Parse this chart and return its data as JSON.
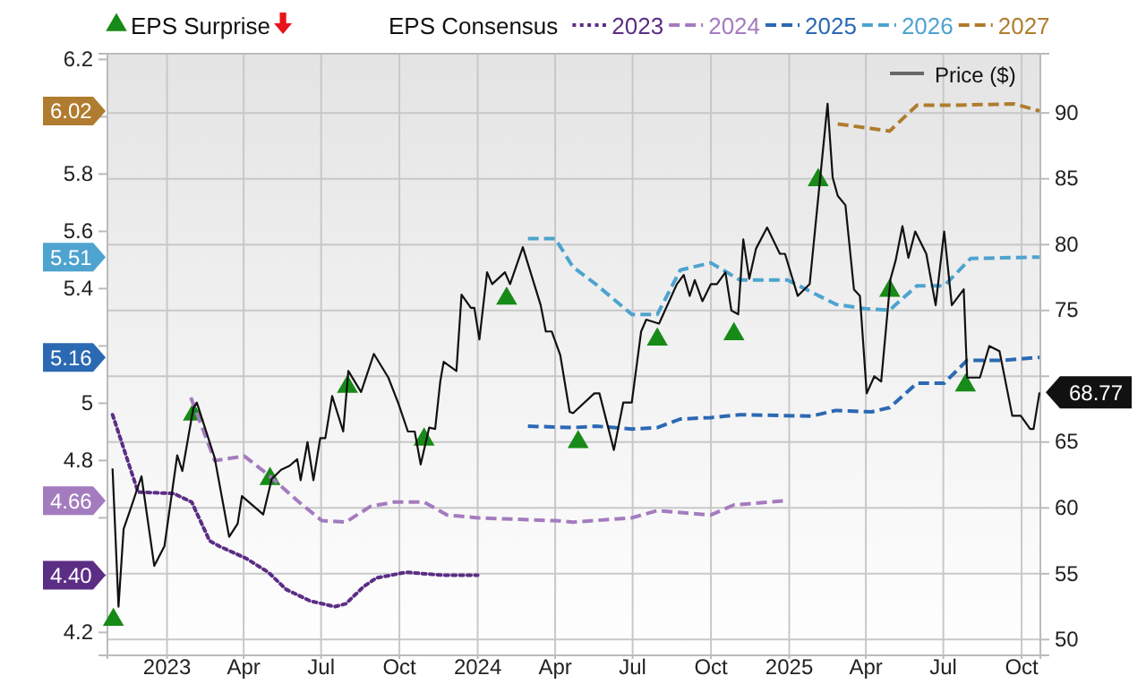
{
  "chart_data": {
    "type": "line",
    "legend_title": "EPS Consensus",
    "xlim": [
      "2022-10-23",
      "2025-10-23"
    ],
    "xticks": [
      {
        "value": "2023-01-01",
        "label": "2023"
      },
      {
        "value": "2023-04-01",
        "label": "Apr"
      },
      {
        "value": "2023-07-01",
        "label": "Jul"
      },
      {
        "value": "2023-10-01",
        "label": "Oct"
      },
      {
        "value": "2024-01-01",
        "label": "2024"
      },
      {
        "value": "2024-04-01",
        "label": "Apr"
      },
      {
        "value": "2024-07-01",
        "label": "Jul"
      },
      {
        "value": "2024-10-01",
        "label": "Oct"
      },
      {
        "value": "2025-01-01",
        "label": "2025"
      },
      {
        "value": "2025-04-01",
        "label": "Apr"
      },
      {
        "value": "2025-07-01",
        "label": "Jul"
      },
      {
        "value": "2025-10-01",
        "label": "Oct"
      }
    ],
    "ylim": [
      4.12,
      6.22
    ],
    "yticks": [
      4.2,
      {
        "value": 4.4,
        "label": null
      },
      {
        "value": 4.6,
        "label": null
      },
      4.8,
      5,
      {
        "value": 5.2,
        "label": null
      },
      5.4,
      5.6,
      5.8,
      {
        "value": 6.0,
        "label": null
      },
      6.2
    ],
    "y2lim": [
      48.8,
      94.5
    ],
    "y2ticks": [
      50,
      55,
      60,
      65,
      {
        "value": 70,
        "label": null
      },
      75,
      80,
      85,
      90
    ],
    "grid": true,
    "legend": "top",
    "annotations": [
      {
        "text": "6.02",
        "y": 6.02
      },
      {
        "text": "5.51",
        "y": 5.51
      },
      {
        "text": "5.16",
        "y": 5.16
      },
      {
        "text": "4.66",
        "y": 4.66
      },
      {
        "text": "4.40",
        "y": 4.4
      }
    ],
    "series": [
      {
        "name": "EPS Surprise",
        "type": "scatter",
        "axis": "y2",
        "marker": "triangle",
        "color": "#178a17",
        "x": [
          "2022-10-30",
          "2023-02-01",
          "2023-05-02",
          "2023-08-01",
          "2023-10-30",
          "2024-02-04",
          "2024-04-28",
          "2024-07-30",
          "2024-10-28",
          "2025-02-04",
          "2025-04-29",
          "2025-07-27"
        ],
        "values": [
          51.5,
          67.1,
          62.2,
          69.2,
          65.2,
          75.9,
          65.0,
          72.8,
          73.2,
          84.9,
          76.5,
          69.3
        ]
      },
      {
        "name": "2023",
        "color": "#5c2d85",
        "line_style": "dotted",
        "x": [
          "2022-10-29",
          "2022-11-28",
          "2023-01-09",
          "2023-01-30",
          "2023-02-20",
          "2023-03-04",
          "2023-04-03",
          "2023-04-30",
          "2023-05-21",
          "2023-06-18",
          "2023-07-17",
          "2023-07-30",
          "2023-08-20",
          "2023-09-04",
          "2023-10-09",
          "2023-11-20",
          "2024-01-01"
        ],
        "values": [
          4.96,
          4.69,
          4.685,
          4.655,
          4.52,
          4.5,
          4.46,
          4.41,
          4.35,
          4.31,
          4.29,
          4.3,
          4.36,
          4.39,
          4.41,
          4.4,
          4.4
        ]
      },
      {
        "name": "2024",
        "color": "#a47bbf",
        "line_style": "dashed",
        "x": [
          "2023-01-29",
          "2023-02-26",
          "2023-04-02",
          "2023-04-30",
          "2023-06-05",
          "2023-07-02",
          "2023-07-30",
          "2023-08-28",
          "2023-09-25",
          "2023-10-30",
          "2023-11-26",
          "2024-01-01",
          "2024-04-01",
          "2024-04-22",
          "2024-06-30",
          "2024-07-30",
          "2024-10-01",
          "2024-10-28",
          "2024-12-30"
        ],
        "values": [
          5.02,
          4.8,
          4.815,
          4.75,
          4.655,
          4.59,
          4.585,
          4.64,
          4.655,
          4.655,
          4.61,
          4.6,
          4.59,
          4.585,
          4.6,
          4.625,
          4.61,
          4.645,
          4.66
        ]
      },
      {
        "name": "2025",
        "color": "#2b69b3",
        "line_style": "dashed",
        "x": [
          "2024-02-29",
          "2024-04-22",
          "2024-05-19",
          "2024-06-30",
          "2024-07-30",
          "2024-08-26",
          "2024-10-01",
          "2024-11-04",
          "2025-01-27",
          "2025-02-25",
          "2025-04-08",
          "2025-04-29",
          "2025-05-31",
          "2025-07-02",
          "2025-07-29",
          "2025-09-09",
          "2025-10-22"
        ],
        "values": [
          4.92,
          4.915,
          4.92,
          4.91,
          4.915,
          4.945,
          4.95,
          4.96,
          4.955,
          4.975,
          4.97,
          4.985,
          5.07,
          5.07,
          5.15,
          5.15,
          5.16
        ]
      },
      {
        "name": "2026",
        "color": "#4ea3cf",
        "line_style": "dashed",
        "x": [
          "2024-02-29",
          "2024-04-01",
          "2024-04-22",
          "2024-05-19",
          "2024-06-30",
          "2024-07-30",
          "2024-08-26",
          "2024-10-01",
          "2024-11-04",
          "2024-12-30",
          "2025-02-25",
          "2025-03-31",
          "2025-04-29",
          "2025-05-31",
          "2025-07-02",
          "2025-08-02",
          "2025-10-22"
        ],
        "values": [
          5.575,
          5.575,
          5.475,
          5.415,
          5.31,
          5.31,
          5.465,
          5.49,
          5.43,
          5.43,
          5.345,
          5.33,
          5.325,
          5.41,
          5.41,
          5.505,
          5.51
        ]
      },
      {
        "name": "2027",
        "color": "#b07c2f",
        "line_style": "dashed",
        "x": [
          "2025-02-27",
          "2025-04-29",
          "2025-05-31",
          "2025-07-12",
          "2025-09-22",
          "2025-10-22"
        ],
        "values": [
          5.975,
          5.95,
          6.04,
          6.04,
          6.045,
          6.02
        ]
      },
      {
        "name": "Price ($)",
        "color": "#111111",
        "axis": "y2",
        "line_style": "solid",
        "x": [
          "2022-10-29",
          "2022-11-05",
          "2022-11-11",
          "2022-11-19",
          "2022-12-02",
          "2022-12-17",
          "2022-12-29",
          "2023-01-13",
          "2023-01-19",
          "2023-02-01",
          "2023-02-05",
          "2023-02-26",
          "2023-03-15",
          "2023-03-25",
          "2023-03-30",
          "2023-04-24",
          "2023-05-04",
          "2023-05-15",
          "2023-05-25",
          "2023-06-03",
          "2023-06-07",
          "2023-06-15",
          "2023-06-22",
          "2023-06-30",
          "2023-07-06",
          "2023-07-14",
          "2023-07-27",
          "2023-08-02",
          "2023-08-17",
          "2023-09-01",
          "2023-09-18",
          "2023-09-30",
          "2023-10-11",
          "2023-10-19",
          "2023-10-26",
          "2023-11-05",
          "2023-11-12",
          "2023-11-18",
          "2023-11-22",
          "2023-12-07",
          "2023-12-13",
          "2023-12-24",
          "2023-12-28",
          "2024-01-03",
          "2024-01-12",
          "2024-01-18",
          "2024-02-02",
          "2024-02-08",
          "2024-02-23",
          "2024-03-15",
          "2024-03-21",
          "2024-03-28",
          "2024-04-07",
          "2024-04-18",
          "2024-04-22",
          "2024-05-17",
          "2024-05-23",
          "2024-06-09",
          "2024-06-20",
          "2024-06-30",
          "2024-07-11",
          "2024-07-17",
          "2024-08-01",
          "2024-08-22",
          "2024-08-30",
          "2024-09-06",
          "2024-09-12",
          "2024-09-21",
          "2024-10-01",
          "2024-10-08",
          "2024-10-18",
          "2024-10-25",
          "2024-11-02",
          "2024-11-08",
          "2024-11-15",
          "2024-11-23",
          "2024-12-06",
          "2024-12-21",
          "2024-12-27",
          "2025-01-11",
          "2025-01-25",
          "2025-02-15",
          "2025-02-21",
          "2025-02-27",
          "2025-03-08",
          "2025-03-18",
          "2025-03-25",
          "2025-04-02",
          "2025-04-11",
          "2025-04-19",
          "2025-04-30",
          "2025-05-06",
          "2025-05-14",
          "2025-05-21",
          "2025-05-29",
          "2025-06-11",
          "2025-06-22",
          "2025-07-02",
          "2025-07-11",
          "2025-07-25",
          "2025-07-29",
          "2025-08-13",
          "2025-08-24",
          "2025-09-05",
          "2025-09-20",
          "2025-09-30",
          "2025-10-11",
          "2025-10-15",
          "2025-10-22"
        ],
        "values": [
          63.0,
          52.5,
          58.4,
          59.9,
          62.4,
          55.6,
          57.1,
          64.0,
          62.8,
          67.6,
          68.0,
          63.8,
          57.8,
          58.8,
          60.9,
          59.5,
          62.2,
          62.9,
          63.2,
          63.7,
          62.1,
          65.0,
          62.1,
          65.3,
          65.3,
          68.5,
          65.8,
          70.4,
          68.8,
          71.7,
          69.9,
          67.9,
          65.8,
          65.8,
          63.3,
          66.1,
          66.0,
          69.6,
          71.1,
          70.4,
          76.2,
          75.2,
          75.2,
          72.8,
          77.9,
          77.0,
          77.9,
          77.0,
          79.8,
          75.4,
          73.4,
          73.4,
          71.6,
          67.3,
          67.2,
          68.7,
          68.7,
          64.4,
          68.0,
          68.0,
          73.4,
          74.3,
          74.0,
          77.0,
          77.7,
          76.1,
          77.3,
          75.7,
          77.0,
          77.0,
          77.9,
          75.0,
          74.7,
          80.4,
          77.4,
          79.7,
          81.3,
          79.3,
          79.3,
          76.1,
          77.0,
          90.7,
          85.1,
          83.7,
          83.0,
          76.6,
          76.1,
          68.7,
          70.0,
          69.6,
          77.4,
          78.8,
          81.4,
          79.0,
          81.0,
          79.3,
          75.4,
          81.0,
          75.4,
          76.6,
          69.9,
          69.9,
          72.3,
          71.9,
          67.0,
          67.0,
          66.0,
          66.0,
          68.77
        ],
        "value_labels": [
          null,
          null,
          null,
          null,
          null,
          null,
          null,
          null,
          null,
          null,
          null,
          null,
          null,
          null,
          null,
          null,
          null,
          null,
          null,
          null,
          null,
          null,
          null,
          null,
          null,
          null,
          null,
          null,
          null,
          null,
          null,
          null,
          null,
          null,
          null,
          null,
          null,
          null,
          null,
          null,
          null,
          null,
          null,
          null,
          null,
          null,
          null,
          null,
          null,
          null,
          null,
          null,
          null,
          null,
          null,
          null,
          null,
          null,
          null,
          null,
          null,
          null,
          null,
          null,
          null,
          null,
          null,
          null,
          null,
          null,
          null,
          null,
          null,
          null,
          null,
          null,
          null,
          null,
          null,
          null,
          null,
          null,
          null,
          null,
          null,
          null,
          null,
          null,
          null,
          null,
          null,
          null,
          null,
          null,
          null,
          null,
          null,
          null,
          null,
          null,
          null,
          null,
          null,
          null,
          null,
          null,
          null,
          null,
          "68.77"
        ]
      }
    ]
  }
}
